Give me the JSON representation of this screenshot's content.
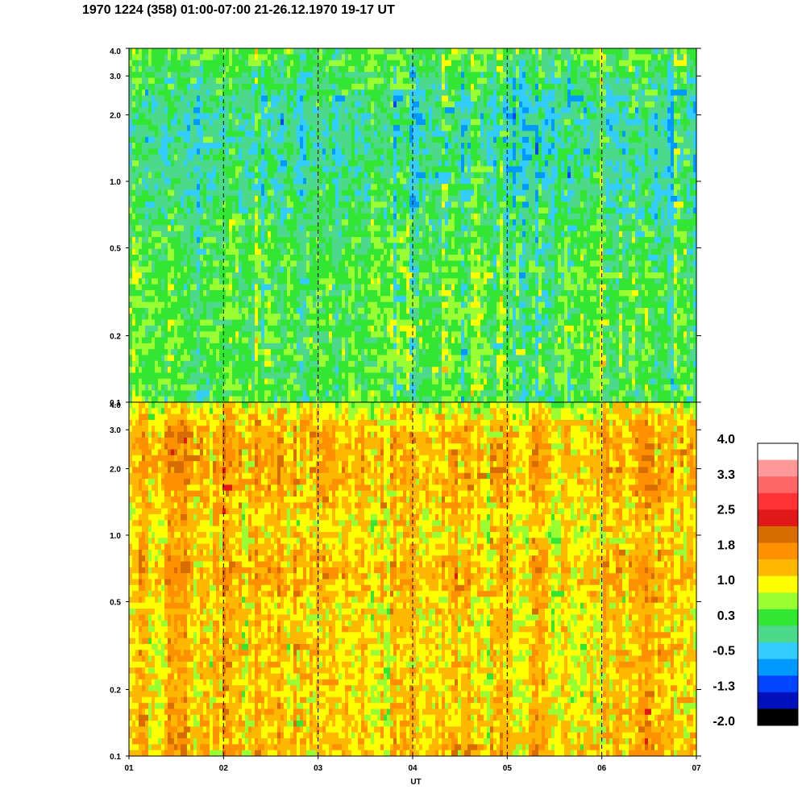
{
  "title": "1970 1224 (358) 01:00-07:00 21-26.12.1970  19-17 UT",
  "colors": {
    "frame": "#000000",
    "background": "#ffffff"
  },
  "chart_data": {
    "type": "heatmap",
    "title": "1970 1224 (358) 01:00-07:00 21-26.12.1970  19-17 UT",
    "xlabel": "UT",
    "x_tick_labels": [
      "01",
      "02",
      "03",
      "04",
      "05",
      "06",
      "07"
    ],
    "x_range": [
      1,
      7
    ],
    "day_separators": [
      2,
      3,
      4,
      5,
      6
    ],
    "y_scale": "log",
    "panels": [
      {
        "name": "upper",
        "y_range": [
          0.1,
          4.0
        ],
        "y_ticks": [
          {
            "value": 4.0,
            "label": "4.0"
          },
          {
            "value": 3.0,
            "label": "3.0"
          },
          {
            "value": 2.0,
            "label": "2.0"
          },
          {
            "value": 1.0,
            "label": "1.0"
          },
          {
            "value": 0.5,
            "label": "0.5"
          },
          {
            "value": 0.2,
            "label": "0.2"
          },
          {
            "value": 0.1,
            "label": "0.1"
          }
        ],
        "typical_level_by_y": [
          {
            "y": 4.0,
            "level": 0.3
          },
          {
            "y": 2.0,
            "level": -0.2
          },
          {
            "y": 1.0,
            "level": -0.1
          },
          {
            "y": 0.5,
            "level": 0.2
          },
          {
            "y": 0.2,
            "level": 0.3
          },
          {
            "y": 0.1,
            "level": 0.2
          }
        ]
      },
      {
        "name": "lower",
        "y_range": [
          0.1,
          4.0
        ],
        "y_ticks": [
          {
            "value": 4.0,
            "label": "4.0"
          },
          {
            "value": 3.0,
            "label": "3.0"
          },
          {
            "value": 2.0,
            "label": "2.0"
          },
          {
            "value": 1.0,
            "label": "1.0"
          },
          {
            "value": 0.5,
            "label": "0.5"
          },
          {
            "value": 0.2,
            "label": "0.2"
          },
          {
            "value": 0.1,
            "label": "0.1"
          }
        ],
        "typical_level_by_y": [
          {
            "y": 4.0,
            "level": 0.8
          },
          {
            "y": 3.0,
            "level": 1.4
          },
          {
            "y": 2.0,
            "level": 1.5
          },
          {
            "y": 1.0,
            "level": 1.1
          },
          {
            "y": 0.7,
            "level": 1.5
          },
          {
            "y": 0.5,
            "level": 1.2
          },
          {
            "y": 0.2,
            "level": 1.2
          },
          {
            "y": 0.1,
            "level": 1.4
          }
        ]
      }
    ],
    "colorbar": {
      "labels": [
        "4.0",
        "3.3",
        "2.5",
        "1.8",
        "1.0",
        "0.3",
        "-0.5",
        "-1.3",
        "-2.0"
      ],
      "colors": [
        "#ffffff",
        "#ff9999",
        "#ff6666",
        "#ff3333",
        "#e01818",
        "#d76c00",
        "#ff9000",
        "#ffb800",
        "#ffff00",
        "#99ff33",
        "#33e633",
        "#4dd98c",
        "#33ccff",
        "#0099ff",
        "#0044ff",
        "#0011bb",
        "#000000"
      ]
    }
  }
}
